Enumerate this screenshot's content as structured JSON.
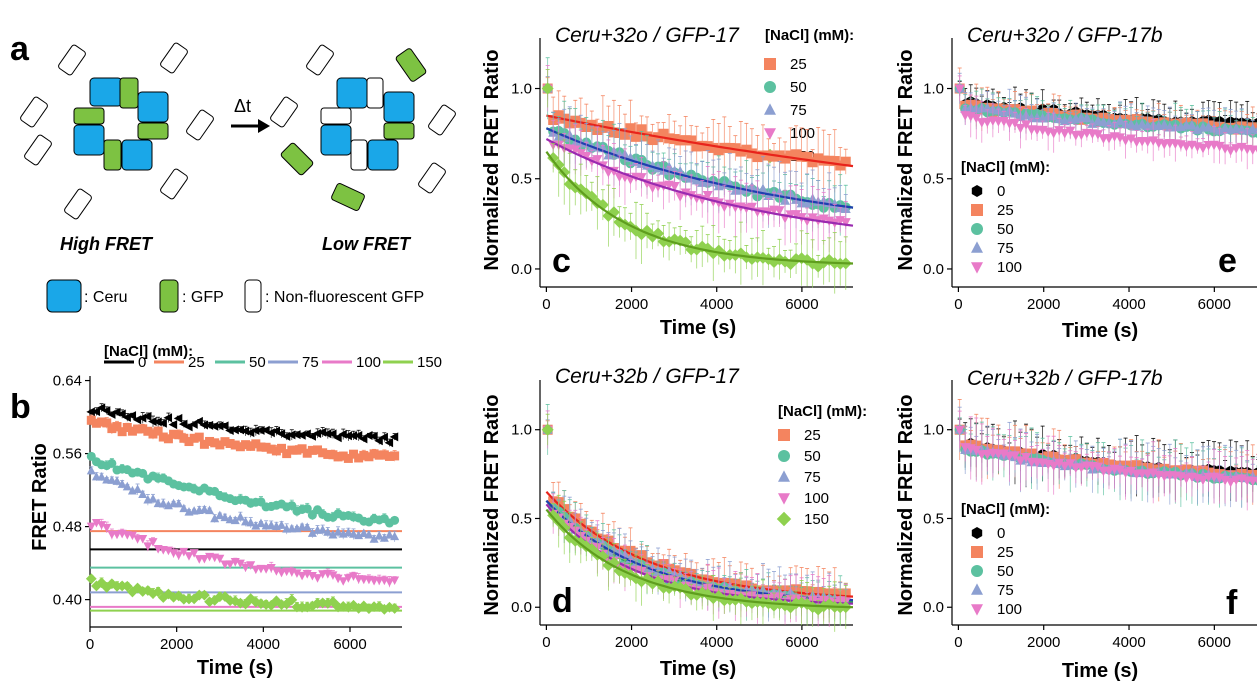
{
  "panel_a": {
    "letter": "a",
    "left_caption": "High FRET",
    "right_caption": "Low FRET",
    "arrow_label": "Δt",
    "key": [
      {
        "label": ": Ceru",
        "color": "#1aa7e8"
      },
      {
        "label": ": GFP",
        "color": "#7dc242"
      },
      {
        "label": ": Non-fluorescent GFP",
        "color": "#ffffff"
      }
    ]
  },
  "colors": {
    "0": "#000000",
    "25": "#f4845f",
    "50": "#5cc1a0",
    "75": "#8c9fd1",
    "100": "#e87ac8",
    "150": "#8fd14f",
    "fit25": "#e8231b",
    "fit50": "#2ba35b",
    "fit75": "#1f3fb0",
    "fit100": "#9a2ab0",
    "fit150": "#5f9e1e"
  },
  "chart_data": [
    {
      "panel": "b",
      "type": "scatter",
      "title": "",
      "xlabel": "Time (s)",
      "ylabel": "FRET Ratio",
      "xlim": [
        0,
        7200
      ],
      "ylim": [
        0.37,
        0.645
      ],
      "xticks": [
        "0",
        "2000",
        "4000",
        "6000"
      ],
      "yticks": [
        "0.40",
        "0.48",
        "0.56",
        "0.64"
      ],
      "legend_title": "[NaCl] (mM):",
      "legend_position": "top",
      "series": [
        {
          "name": "0",
          "start": 0.61,
          "end": 0.575,
          "tau": 5000,
          "baseline": 0.455
        },
        {
          "name": "25",
          "start": 0.595,
          "end": 0.555,
          "tau": 5000,
          "baseline": 0.475
        },
        {
          "name": "50",
          "start": 0.555,
          "end": 0.483,
          "tau": 6000,
          "baseline": 0.435
        },
        {
          "name": "75",
          "start": 0.54,
          "end": 0.466,
          "tau": 3500,
          "baseline": 0.408
        },
        {
          "name": "100",
          "start": 0.485,
          "end": 0.42,
          "tau": 3500,
          "baseline": 0.392
        },
        {
          "name": "150",
          "start": 0.42,
          "end": 0.393,
          "tau": 2500,
          "baseline": 0.388
        }
      ]
    },
    {
      "panel": "c",
      "type": "scatter",
      "title": "Ceru+32o / GFP-17",
      "xlabel": "Time (s)",
      "ylabel": "Normalized FRET Ratio",
      "xlim": [
        -150,
        7200
      ],
      "ylim": [
        -0.1,
        1.28
      ],
      "xticks": [
        "0",
        "2000",
        "4000",
        "6000"
      ],
      "yticks": [
        "0.0",
        "0.5",
        "1.0"
      ],
      "legend_title": "[NaCl] (mM):",
      "legend_position": "top-right",
      "series": [
        {
          "name": "25",
          "start": 0.85,
          "end": 0.57,
          "tau": 16000
        },
        {
          "name": "50",
          "start": 0.78,
          "end": 0.34,
          "tau": 6000
        },
        {
          "name": "75",
          "start": 0.78,
          "end": 0.34,
          "tau": 6000
        },
        {
          "name": "100",
          "start": 0.72,
          "end": 0.24,
          "tau": 5000
        },
        {
          "name": "150",
          "start": 0.65,
          "end": 0.03,
          "tau": 1900
        }
      ]
    },
    {
      "panel": "d",
      "type": "scatter",
      "title": "Ceru+32b / GFP-17",
      "xlabel": "Time (s)",
      "ylabel": "Normalized FRET Ratio",
      "xlim": [
        -150,
        7200
      ],
      "ylim": [
        -0.1,
        1.28
      ],
      "xticks": [
        "0",
        "2000",
        "4000",
        "6000"
      ],
      "yticks": [
        "0.0",
        "0.5",
        "1.0"
      ],
      "legend_title": "[NaCl] (mM):",
      "legend_position": "right",
      "series": [
        {
          "name": "25",
          "start": 0.65,
          "end": 0.06,
          "tau": 2400
        },
        {
          "name": "50",
          "start": 0.6,
          "end": 0.03,
          "tau": 2200
        },
        {
          "name": "75",
          "start": 0.6,
          "end": 0.04,
          "tau": 2300
        },
        {
          "name": "100",
          "start": 0.58,
          "end": 0.02,
          "tau": 2000
        },
        {
          "name": "150",
          "start": 0.55,
          "end": 0.0,
          "tau": 1900
        }
      ]
    },
    {
      "panel": "e",
      "type": "scatter",
      "title": "Ceru+32o / GFP-17b",
      "xlabel": "Time (s)",
      "ylabel": "Normalized FRET Ratio",
      "xlim": [
        -150,
        7000
      ],
      "ylim": [
        -0.1,
        1.28
      ],
      "xticks": [
        "0",
        "2000",
        "4000",
        "6000"
      ],
      "yticks": [
        "0.0",
        "0.5",
        "1.0"
      ],
      "legend_title": "[NaCl] (mM):",
      "legend_position": "left",
      "series": [
        {
          "name": "0",
          "start": 0.93,
          "end": 0.8,
          "tau": 6000
        },
        {
          "name": "25",
          "start": 0.91,
          "end": 0.78,
          "tau": 6000
        },
        {
          "name": "50",
          "start": 0.9,
          "end": 0.76,
          "tau": 6000
        },
        {
          "name": "75",
          "start": 0.9,
          "end": 0.76,
          "tau": 6000
        },
        {
          "name": "100",
          "start": 0.85,
          "end": 0.66,
          "tau": 6000
        }
      ]
    },
    {
      "panel": "f",
      "type": "scatter",
      "title": "Ceru+32b / GFP-17b",
      "xlabel": "Time (s)",
      "ylabel": "Normalized FRET Ratio",
      "xlim": [
        -150,
        7000
      ],
      "ylim": [
        -0.1,
        1.28
      ],
      "xticks": [
        "0",
        "2000",
        "4000",
        "6000"
      ],
      "yticks": [
        "0.0",
        "0.5",
        "1.0"
      ],
      "legend_title": "[NaCl] (mM):",
      "legend_position": "left",
      "series": [
        {
          "name": "0",
          "start": 0.93,
          "end": 0.75,
          "tau": 5000
        },
        {
          "name": "25",
          "start": 0.92,
          "end": 0.74,
          "tau": 5000
        },
        {
          "name": "50",
          "start": 0.9,
          "end": 0.72,
          "tau": 5000
        },
        {
          "name": "75",
          "start": 0.9,
          "end": 0.72,
          "tau": 5000
        },
        {
          "name": "100",
          "start": 0.9,
          "end": 0.71,
          "tau": 5000
        }
      ]
    }
  ]
}
